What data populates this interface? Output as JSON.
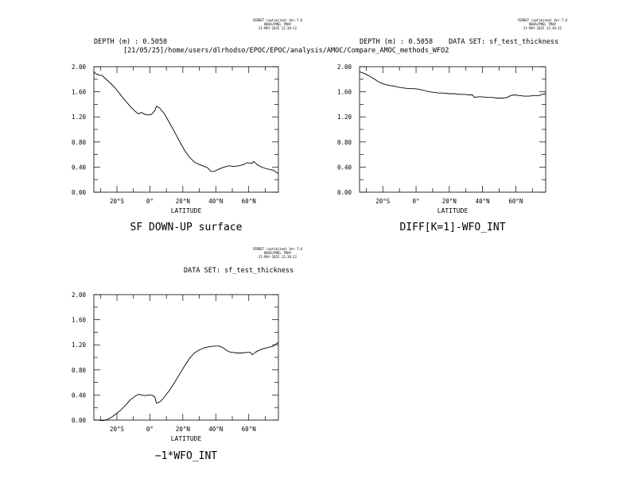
{
  "headers": {
    "ferret_line1": "FERRET (optimized) Ver.7.6",
    "ferret_line2": "NOAA/PMEL TMAP",
    "ferret_line3": "21-MAY-2025 12:38:12",
    "depth": "DEPTH (m) : 0.5058",
    "path": "[21/05/25]/home/users/dlrhodso/EPOC/EPOC/analysis/AMOC/Compare_AMOC_methods_WFO2",
    "dataset": "DATA SET: sf_test_thickness"
  },
  "chart_data": [
    {
      "type": "line",
      "caption": "SF DOWN-UP surface",
      "xlabel": "LATITUDE",
      "xlim": [
        -34,
        78
      ],
      "ylim": [
        0,
        2
      ],
      "xticks": [
        {
          "v": -20,
          "label": "20°S"
        },
        {
          "v": 0,
          "label": "0°"
        },
        {
          "v": 20,
          "label": "20°N"
        },
        {
          "v": 40,
          "label": "40°N"
        },
        {
          "v": 60,
          "label": "60°N"
        }
      ],
      "yticks": [
        {
          "v": 0,
          "label": "0.00"
        },
        {
          "v": 0.4,
          "label": "0.40"
        },
        {
          "v": 0.8,
          "label": "0.80"
        },
        {
          "v": 1.2,
          "label": "1.20"
        },
        {
          "v": 1.6,
          "label": "1.60"
        },
        {
          "v": 2.0,
          "label": "2.00"
        }
      ],
      "series": [
        {
          "values": [
            [
              -34,
              1.92
            ],
            [
              -33,
              1.89
            ],
            [
              -31,
              1.87
            ],
            [
              -29,
              1.86
            ],
            [
              -27,
              1.81
            ],
            [
              -24,
              1.74
            ],
            [
              -21,
              1.66
            ],
            [
              -18,
              1.56
            ],
            [
              -15,
              1.46
            ],
            [
              -12,
              1.37
            ],
            [
              -9,
              1.29
            ],
            [
              -7,
              1.25
            ],
            [
              -5,
              1.27
            ],
            [
              -3,
              1.24
            ],
            [
              -1,
              1.23
            ],
            [
              1,
              1.24
            ],
            [
              3,
              1.3
            ],
            [
              4,
              1.37
            ],
            [
              6,
              1.34
            ],
            [
              9,
              1.24
            ],
            [
              12,
              1.1
            ],
            [
              15,
              0.96
            ],
            [
              18,
              0.81
            ],
            [
              21,
              0.67
            ],
            [
              24,
              0.56
            ],
            [
              27,
              0.48
            ],
            [
              30,
              0.44
            ],
            [
              33,
              0.41
            ],
            [
              35,
              0.39
            ],
            [
              37,
              0.33
            ],
            [
              39,
              0.33
            ],
            [
              42,
              0.37
            ],
            [
              45,
              0.4
            ],
            [
              48,
              0.42
            ],
            [
              51,
              0.41
            ],
            [
              54,
              0.42
            ],
            [
              57,
              0.44
            ],
            [
              59,
              0.47
            ],
            [
              62,
              0.46
            ],
            [
              63,
              0.49
            ],
            [
              65,
              0.44
            ],
            [
              67,
              0.41
            ],
            [
              70,
              0.38
            ],
            [
              73,
              0.36
            ],
            [
              75,
              0.35
            ],
            [
              77,
              0.31
            ],
            [
              78,
              0.3
            ]
          ]
        }
      ]
    },
    {
      "type": "line",
      "caption": "DIFF[K=1]-WFO_INT",
      "xlabel": "LATITUDE",
      "xlim": [
        -34,
        78
      ],
      "ylim": [
        0,
        2
      ],
      "xticks": [
        {
          "v": -20,
          "label": "20°S"
        },
        {
          "v": 0,
          "label": "0°"
        },
        {
          "v": 20,
          "label": "20°N"
        },
        {
          "v": 40,
          "label": "40°N"
        },
        {
          "v": 60,
          "label": "60°N"
        }
      ],
      "yticks": [
        {
          "v": 0,
          "label": "0.00"
        },
        {
          "v": 0.4,
          "label": "0.40"
        },
        {
          "v": 0.8,
          "label": "0.80"
        },
        {
          "v": 1.2,
          "label": "1.20"
        },
        {
          "v": 1.6,
          "label": "1.60"
        },
        {
          "v": 2.0,
          "label": "2.00"
        }
      ],
      "series": [
        {
          "values": [
            [
              -34,
              1.92
            ],
            [
              -31,
              1.89
            ],
            [
              -28,
              1.85
            ],
            [
              -25,
              1.8
            ],
            [
              -22,
              1.75
            ],
            [
              -19,
              1.72
            ],
            [
              -16,
              1.7
            ],
            [
              -13,
              1.69
            ],
            [
              -10,
              1.67
            ],
            [
              -7,
              1.66
            ],
            [
              -4,
              1.65
            ],
            [
              -1,
              1.65
            ],
            [
              2,
              1.64
            ],
            [
              5,
              1.62
            ],
            [
              8,
              1.6
            ],
            [
              11,
              1.59
            ],
            [
              14,
              1.58
            ],
            [
              17,
              1.58
            ],
            [
              20,
              1.57
            ],
            [
              23,
              1.57
            ],
            [
              26,
              1.56
            ],
            [
              29,
              1.56
            ],
            [
              32,
              1.55
            ],
            [
              34,
              1.55
            ],
            [
              35,
              1.51
            ],
            [
              37,
              1.52
            ],
            [
              40,
              1.52
            ],
            [
              43,
              1.51
            ],
            [
              46,
              1.51
            ],
            [
              49,
              1.5
            ],
            [
              52,
              1.5
            ],
            [
              55,
              1.51
            ],
            [
              57,
              1.54
            ],
            [
              59,
              1.55
            ],
            [
              62,
              1.54
            ],
            [
              65,
              1.53
            ],
            [
              68,
              1.53
            ],
            [
              71,
              1.54
            ],
            [
              74,
              1.54
            ],
            [
              76,
              1.56
            ],
            [
              78,
              1.57
            ]
          ]
        }
      ]
    },
    {
      "type": "line",
      "caption": "−1*WFO_INT",
      "xlabel": "LATITUDE",
      "xlim": [
        -34,
        78
      ],
      "ylim": [
        0,
        2
      ],
      "xticks": [
        {
          "v": -20,
          "label": "20°S"
        },
        {
          "v": 0,
          "label": "0°"
        },
        {
          "v": 20,
          "label": "20°N"
        },
        {
          "v": 40,
          "label": "40°N"
        },
        {
          "v": 60,
          "label": "60°N"
        }
      ],
      "yticks": [
        {
          "v": 0,
          "label": "0.00"
        },
        {
          "v": 0.4,
          "label": "0.40"
        },
        {
          "v": 0.8,
          "label": "0.80"
        },
        {
          "v": 1.2,
          "label": "1.20"
        },
        {
          "v": 1.6,
          "label": "1.60"
        },
        {
          "v": 2.0,
          "label": "2.00"
        }
      ],
      "series": [
        {
          "values": [
            [
              -34,
              0.0
            ],
            [
              -31,
              0.0
            ],
            [
              -29,
              -0.01
            ],
            [
              -27,
              0.0
            ],
            [
              -25,
              0.02
            ],
            [
              -23,
              0.05
            ],
            [
              -21,
              0.09
            ],
            [
              -18,
              0.15
            ],
            [
              -15,
              0.23
            ],
            [
              -12,
              0.32
            ],
            [
              -9,
              0.38
            ],
            [
              -7,
              0.41
            ],
            [
              -5,
              0.4
            ],
            [
              -3,
              0.39
            ],
            [
              -1,
              0.4
            ],
            [
              1,
              0.4
            ],
            [
              3,
              0.37
            ],
            [
              4,
              0.27
            ],
            [
              6,
              0.29
            ],
            [
              8,
              0.34
            ],
            [
              10,
              0.41
            ],
            [
              12,
              0.48
            ],
            [
              15,
              0.6
            ],
            [
              18,
              0.73
            ],
            [
              21,
              0.86
            ],
            [
              24,
              0.98
            ],
            [
              27,
              1.07
            ],
            [
              30,
              1.12
            ],
            [
              33,
              1.15
            ],
            [
              36,
              1.17
            ],
            [
              39,
              1.18
            ],
            [
              42,
              1.18
            ],
            [
              44,
              1.16
            ],
            [
              46,
              1.12
            ],
            [
              48,
              1.09
            ],
            [
              50,
              1.08
            ],
            [
              53,
              1.07
            ],
            [
              56,
              1.07
            ],
            [
              59,
              1.08
            ],
            [
              61,
              1.08
            ],
            [
              62,
              1.04
            ],
            [
              64,
              1.08
            ],
            [
              66,
              1.11
            ],
            [
              69,
              1.14
            ],
            [
              72,
              1.16
            ],
            [
              75,
              1.18
            ],
            [
              77,
              1.22
            ],
            [
              78,
              1.24
            ]
          ]
        }
      ]
    }
  ]
}
